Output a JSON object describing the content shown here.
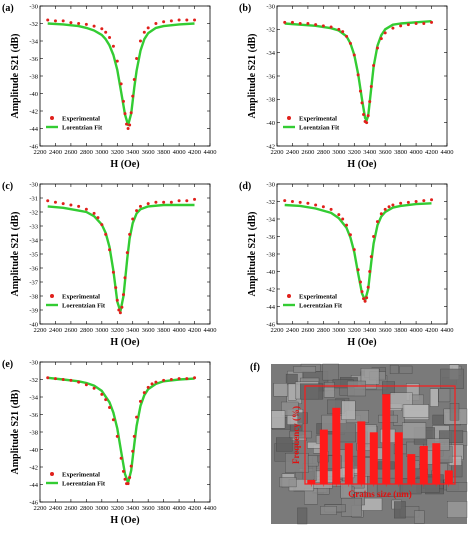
{
  "colors": {
    "experimental": "#e0201b",
    "fit": "#33cc33",
    "sem_overlay": "#ff1a1a",
    "sem_bg": "#7a7a7a"
  },
  "chart_data": [
    {
      "id": "a",
      "panel_label": "(a)",
      "type": "scatter",
      "xlabel": "H (Oe)",
      "ylabel": "Amplitude S21 (dB)",
      "xlim": [
        2200,
        4400
      ],
      "ylim": [
        -46,
        -30
      ],
      "ystep": 2,
      "xticks": [
        2200,
        2400,
        2600,
        2800,
        3000,
        3200,
        3400,
        3600,
        3800,
        4000,
        4200,
        4400
      ],
      "legend": [
        "Experimental",
        "Lorentzian Fit"
      ],
      "legend_position": "lower-left",
      "series": [
        {
          "name": "Experimental",
          "kind": "markers",
          "x": [
            2300,
            2400,
            2500,
            2600,
            2700,
            2800,
            2900,
            3000,
            3050,
            3100,
            3150,
            3200,
            3250,
            3280,
            3300,
            3320,
            3340,
            3360,
            3380,
            3400,
            3420,
            3450,
            3500,
            3550,
            3600,
            3700,
            3800,
            3900,
            4000,
            4100,
            4200
          ],
          "y": [
            -31.6,
            -31.7,
            -31.7,
            -31.9,
            -32.0,
            -32.1,
            -32.3,
            -32.6,
            -33.0,
            -33.6,
            -34.6,
            -36.3,
            -38.9,
            -40.9,
            -42.3,
            -43.5,
            -44.0,
            -43.6,
            -42.2,
            -40.3,
            -38.4,
            -36.0,
            -34.0,
            -33.0,
            -32.5,
            -32.0,
            -31.8,
            -31.7,
            -31.6,
            -31.6,
            -31.6
          ]
        },
        {
          "name": "Lorentzian Fit",
          "kind": "line",
          "x": [
            2300,
            2500,
            2700,
            2800,
            2900,
            3000,
            3050,
            3100,
            3150,
            3200,
            3250,
            3300,
            3340,
            3380,
            3420,
            3450,
            3500,
            3550,
            3600,
            3700,
            3800,
            4000,
            4200
          ],
          "y": [
            -32.0,
            -32.1,
            -32.3,
            -32.5,
            -32.8,
            -33.3,
            -33.8,
            -34.5,
            -35.6,
            -37.3,
            -39.8,
            -42.4,
            -43.6,
            -42.3,
            -39.3,
            -37.4,
            -35.1,
            -33.8,
            -33.1,
            -32.5,
            -32.3,
            -32.1,
            -32.0
          ]
        }
      ]
    },
    {
      "id": "b",
      "panel_label": "(b)",
      "type": "scatter",
      "xlabel": "H (Oe)",
      "ylabel": "Amplitude S21 (dB)",
      "xlim": [
        2200,
        4400
      ],
      "ylim": [
        -42,
        -30
      ],
      "ystep": 2,
      "xticks": [
        2200,
        2400,
        2600,
        2800,
        3000,
        3200,
        3400,
        3600,
        3800,
        4000,
        4200,
        4400
      ],
      "legend": [
        "Experimental",
        "Lorentzian Fit"
      ],
      "legend_position": "lower-left",
      "series": [
        {
          "name": "Experimental",
          "kind": "markers",
          "x": [
            2300,
            2400,
            2500,
            2600,
            2700,
            2800,
            2900,
            3000,
            3050,
            3100,
            3150,
            3200,
            3250,
            3280,
            3300,
            3320,
            3340,
            3360,
            3380,
            3400,
            3420,
            3450,
            3500,
            3550,
            3600,
            3700,
            3800,
            3900,
            4000,
            4100,
            4200
          ],
          "y": [
            -31.4,
            -31.4,
            -31.5,
            -31.5,
            -31.6,
            -31.7,
            -31.8,
            -32.0,
            -32.2,
            -32.6,
            -33.2,
            -34.2,
            -35.9,
            -37.3,
            -38.3,
            -39.3,
            -39.9,
            -40.0,
            -39.4,
            -38.2,
            -36.9,
            -35.1,
            -33.6,
            -32.8,
            -32.3,
            -31.9,
            -31.7,
            -31.6,
            -31.5,
            -31.5,
            -31.4
          ]
        },
        {
          "name": "Lorentzian Fit",
          "kind": "line",
          "x": [
            2300,
            2500,
            2700,
            2900,
            3000,
            3100,
            3150,
            3200,
            3250,
            3300,
            3340,
            3360,
            3380,
            3420,
            3450,
            3500,
            3550,
            3600,
            3700,
            3800,
            4000,
            4200
          ],
          "y": [
            -31.5,
            -31.6,
            -31.7,
            -31.9,
            -32.1,
            -32.6,
            -33.2,
            -34.2,
            -35.8,
            -38.0,
            -39.6,
            -39.8,
            -39.4,
            -37.0,
            -35.2,
            -33.4,
            -32.5,
            -32.0,
            -31.6,
            -31.5,
            -31.4,
            -31.3
          ]
        }
      ]
    },
    {
      "id": "c",
      "panel_label": "(c)",
      "type": "scatter",
      "xlabel": "H (Oe)",
      "ylabel": "Amplitude S21 (dB)",
      "xlim": [
        2200,
        4400
      ],
      "ylim": [
        -40,
        -30
      ],
      "ystep": 1,
      "xticks": [
        2200,
        2400,
        2600,
        2800,
        3000,
        3200,
        3400,
        3600,
        3800,
        4000,
        4200,
        4400
      ],
      "legend": [
        "Experimental",
        "Loerentzian Fit"
      ],
      "legend_position": "lower-left",
      "series": [
        {
          "name": "Experimental",
          "kind": "markers",
          "x": [
            2300,
            2400,
            2500,
            2600,
            2700,
            2800,
            2900,
            2950,
            3000,
            3050,
            3100,
            3150,
            3180,
            3200,
            3220,
            3240,
            3260,
            3280,
            3300,
            3330,
            3360,
            3400,
            3450,
            3500,
            3600,
            3700,
            3800,
            3900,
            4000,
            4100,
            4200
          ],
          "y": [
            -31.2,
            -31.3,
            -31.4,
            -31.5,
            -31.6,
            -31.8,
            -32.1,
            -32.4,
            -32.9,
            -33.6,
            -34.7,
            -36.3,
            -37.4,
            -38.3,
            -39.0,
            -39.2,
            -38.8,
            -37.9,
            -36.7,
            -34.9,
            -33.6,
            -32.5,
            -31.9,
            -31.6,
            -31.4,
            -31.3,
            -31.3,
            -31.3,
            -31.2,
            -31.2,
            -31.1
          ]
        },
        {
          "name": "Loerentzian Fit",
          "kind": "line",
          "x": [
            2300,
            2500,
            2700,
            2800,
            2900,
            3000,
            3050,
            3100,
            3150,
            3200,
            3240,
            3280,
            3330,
            3360,
            3400,
            3450,
            3500,
            3600,
            3800,
            4000,
            4200
          ],
          "y": [
            -31.6,
            -31.7,
            -31.9,
            -32.0,
            -32.3,
            -32.9,
            -33.5,
            -34.5,
            -36.2,
            -38.4,
            -39.1,
            -38.0,
            -35.3,
            -33.9,
            -32.8,
            -32.1,
            -31.8,
            -31.6,
            -31.5,
            -31.5,
            -31.5
          ]
        }
      ]
    },
    {
      "id": "d",
      "panel_label": "(d)",
      "type": "scatter",
      "xlabel": "H (Oe)",
      "ylabel": "Amplitude S21 (dB)",
      "xlim": [
        2200,
        4400
      ],
      "ylim": [
        -46,
        -30
      ],
      "ystep": 2,
      "xticks": [
        2200,
        2400,
        2600,
        2800,
        3000,
        3200,
        3400,
        3600,
        3800,
        4000,
        4200,
        4400
      ],
      "legend": [
        "Experimental",
        "Loerentzian Fit"
      ],
      "legend_position": "lower-left",
      "series": [
        {
          "name": "Experimental",
          "kind": "markers",
          "x": [
            2300,
            2400,
            2500,
            2600,
            2700,
            2800,
            2900,
            3000,
            3050,
            3100,
            3150,
            3200,
            3250,
            3280,
            3300,
            3320,
            3340,
            3360,
            3380,
            3400,
            3420,
            3450,
            3500,
            3550,
            3600,
            3650,
            3700,
            3800,
            3900,
            4000,
            4100,
            4200
          ],
          "y": [
            -31.9,
            -32.0,
            -32.1,
            -32.2,
            -32.4,
            -32.6,
            -32.9,
            -33.5,
            -34.0,
            -34.7,
            -35.8,
            -37.5,
            -39.8,
            -41.2,
            -42.3,
            -43.1,
            -43.4,
            -43.0,
            -41.8,
            -40.0,
            -38.3,
            -36.0,
            -34.3,
            -33.4,
            -32.9,
            -32.6,
            -32.4,
            -32.2,
            -32.1,
            -32.0,
            -31.9,
            -31.8
          ]
        },
        {
          "name": "Loerentzian Fit",
          "kind": "line",
          "x": [
            2300,
            2500,
            2700,
            2900,
            3000,
            3100,
            3150,
            3200,
            3250,
            3300,
            3340,
            3380,
            3420,
            3450,
            3500,
            3550,
            3600,
            3700,
            3800,
            4000,
            4200
          ],
          "y": [
            -32.4,
            -32.5,
            -32.8,
            -33.3,
            -33.9,
            -35.0,
            -36.1,
            -37.8,
            -40.2,
            -42.5,
            -43.3,
            -42.0,
            -38.9,
            -36.8,
            -34.7,
            -33.7,
            -33.2,
            -32.7,
            -32.5,
            -32.3,
            -32.2
          ]
        }
      ]
    },
    {
      "id": "e",
      "panel_label": "(e)",
      "type": "scatter",
      "xlabel": "H (Oe)",
      "ylabel": "Amplitude S21 (dB)",
      "xlim": [
        2200,
        4400
      ],
      "ylim": [
        -46,
        -30
      ],
      "ystep": 2,
      "xticks": [
        2200,
        2400,
        2600,
        2800,
        3000,
        3200,
        3400,
        3600,
        3800,
        4000,
        4200,
        4400
      ],
      "legend": [
        "Experimental",
        "Loerentzian Fit"
      ],
      "legend_position": "lower-left",
      "series": [
        {
          "name": "Experimental",
          "kind": "markers",
          "x": [
            2300,
            2400,
            2500,
            2600,
            2700,
            2800,
            2900,
            3000,
            3050,
            3100,
            3150,
            3200,
            3250,
            3280,
            3300,
            3320,
            3340,
            3360,
            3380,
            3400,
            3420,
            3450,
            3500,
            3550,
            3600,
            3650,
            3700,
            3800,
            3900,
            4000,
            4100,
            4200
          ],
          "y": [
            -31.8,
            -31.9,
            -32.0,
            -32.1,
            -32.3,
            -32.6,
            -33.0,
            -33.7,
            -34.3,
            -35.2,
            -36.6,
            -38.5,
            -41.0,
            -42.5,
            -43.4,
            -43.9,
            -43.9,
            -43.2,
            -41.9,
            -40.2,
            -38.5,
            -36.3,
            -34.5,
            -33.5,
            -32.9,
            -32.5,
            -32.3,
            -32.1,
            -32.0,
            -31.9,
            -31.9,
            -31.8
          ]
        },
        {
          "name": "Loerentzian Fit",
          "kind": "line",
          "x": [
            2300,
            2500,
            2700,
            2800,
            2900,
            3000,
            3100,
            3150,
            3200,
            3250,
            3300,
            3340,
            3380,
            3420,
            3450,
            3500,
            3550,
            3600,
            3700,
            3800,
            4000,
            4200
          ],
          "y": [
            -31.8,
            -32.0,
            -32.2,
            -32.4,
            -32.7,
            -33.3,
            -34.6,
            -35.8,
            -37.6,
            -40.2,
            -42.8,
            -43.8,
            -42.4,
            -39.4,
            -37.3,
            -35.0,
            -33.8,
            -33.1,
            -32.5,
            -32.2,
            -32.0,
            -31.9
          ]
        }
      ]
    },
    {
      "id": "f",
      "panel_label": "(f)",
      "type": "bar",
      "xlabel": "Grains size (nm)",
      "ylabel": "Frequency (%)",
      "values": [
        3,
        40,
        56,
        30,
        46,
        38,
        66,
        38,
        22,
        28,
        30,
        10
      ],
      "value_max": 72,
      "categories_note": "unreadable"
    }
  ]
}
